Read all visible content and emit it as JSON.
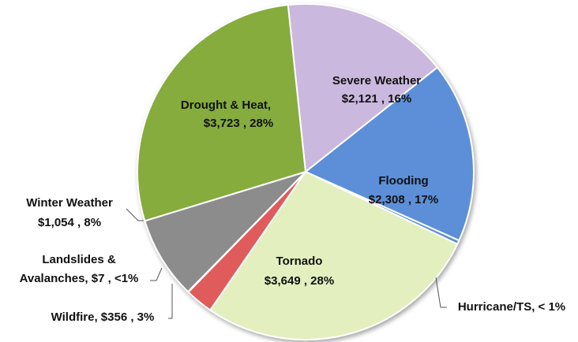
{
  "chart_data": {
    "type": "pie",
    "title": "",
    "slices": [
      {
        "name": "Severe Weather",
        "value": 2121,
        "value_label": "$2,121",
        "pct_label": "16%",
        "color": "#cbb8de"
      },
      {
        "name": "Flooding",
        "value": 2308,
        "value_label": "$2,308",
        "pct_label": "17%",
        "color": "#5b8fd8"
      },
      {
        "name": "Hurricane/TS",
        "value": 50,
        "value_label": "",
        "pct_label": "< 1%",
        "color": "#5b8fd8"
      },
      {
        "name": "Tornado",
        "value": 3649,
        "value_label": "$3,649",
        "pct_label": "28%",
        "color": "#e3efbe"
      },
      {
        "name": "Wildfire",
        "value": 356,
        "value_label": "$356",
        "pct_label": "3%",
        "color": "#e05c5c"
      },
      {
        "name": "Landslides & Avalanches",
        "value": 7,
        "value_label": "$7",
        "pct_label": "<1%",
        "color": "#b0b0b0"
      },
      {
        "name": "Winter Weather",
        "value": 1054,
        "value_label": "$1,054",
        "pct_label": "8%",
        "color": "#8c8c8c"
      },
      {
        "name": "Drought & Heat",
        "value": 3723,
        "value_label": "$3,723",
        "pct_label": "28%",
        "color": "#85ac3e"
      }
    ],
    "labels": {
      "severe_weather": [
        "Severe Weather",
        "$2,121 , 16%"
      ],
      "flooding": [
        "Flooding",
        "$2,308 , 17%"
      ],
      "hurricane": [
        "Hurricane/TS, < 1%"
      ],
      "tornado": [
        "Tornado",
        "$3,649 , 28%"
      ],
      "wildfire": [
        "Wildfire, $356 , 3%"
      ],
      "landslides": [
        "Landslides &",
        "Avalanches, $7 , <1%"
      ],
      "winter": [
        "Winter Weather",
        "$1,054 , 8%"
      ],
      "drought": [
        "Drought & Heat,",
        "$3,723 , 28%"
      ]
    }
  }
}
